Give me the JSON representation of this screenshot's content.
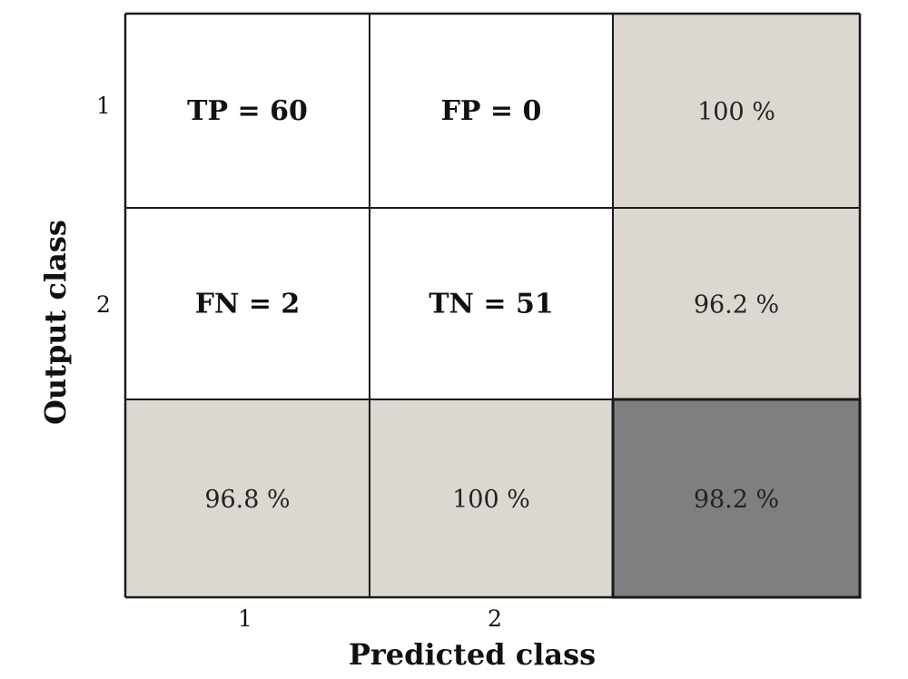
{
  "chart_data": {
    "type": "heatmap",
    "title": "",
    "xlabel": "Predicted class",
    "ylabel": "Output class",
    "x_ticks": [
      "1",
      "2"
    ],
    "y_ticks": [
      "1",
      "2"
    ],
    "matrix": [
      [
        {
          "label": "TP",
          "value": 60,
          "text": "TP = 60"
        },
        {
          "label": "FP",
          "value": 0,
          "text": "FP = 0"
        },
        {
          "value": 100,
          "text": "100 %"
        }
      ],
      [
        {
          "label": "FN",
          "value": 2,
          "text": "FN = 2"
        },
        {
          "label": "TN",
          "value": 51,
          "text": "TN = 51"
        },
        {
          "value": 96.2,
          "text": "96.2 %"
        }
      ],
      [
        {
          "value": 96.8,
          "text": "96.8 %"
        },
        {
          "value": 100,
          "text": "100 %"
        },
        {
          "value": 98.2,
          "text": "98.2 %"
        }
      ]
    ],
    "cell_colors": [
      [
        "#ffffff",
        "#ffffff",
        "#dcd8d1"
      ],
      [
        "#ffffff",
        "#ffffff",
        "#dcd8d1"
      ],
      [
        "#dcd8d1",
        "#dcd8d1",
        "#7f7f7f"
      ]
    ],
    "grid_color": "#1a1a1a"
  }
}
